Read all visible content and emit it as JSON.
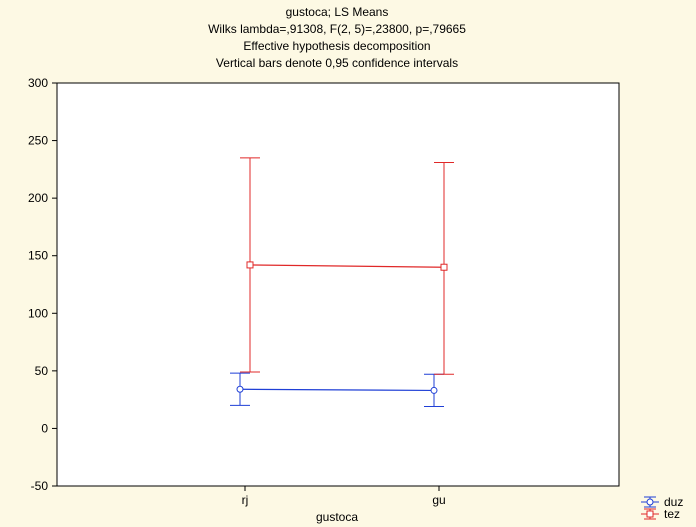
{
  "chart_data": {
    "type": "line",
    "title": [
      "gustoca; LS Means",
      "Wilks lambda=,91308, F(2, 5)=,23800, p=,79665",
      "Effective hypothesis decomposition",
      "Vertical bars denote 0,95 confidence intervals"
    ],
    "xlabel": "gustoca",
    "ylabel": "",
    "categories": [
      "rj",
      "gu"
    ],
    "ylim": [
      -50,
      300
    ],
    "yticks": [
      -50,
      0,
      50,
      100,
      150,
      200,
      250,
      300
    ],
    "series": [
      {
        "name": "duz",
        "color": "#1f3fd6",
        "marker": "circle",
        "values": [
          34,
          33
        ],
        "ci_low": [
          20,
          19
        ],
        "ci_high": [
          48,
          47
        ]
      },
      {
        "name": "tez",
        "color": "#e02828",
        "marker": "square",
        "values": [
          142,
          140
        ],
        "ci_low": [
          49,
          47
        ],
        "ci_high": [
          235,
          231
        ]
      }
    ],
    "legend_position": "bottom-right",
    "grid": false
  }
}
